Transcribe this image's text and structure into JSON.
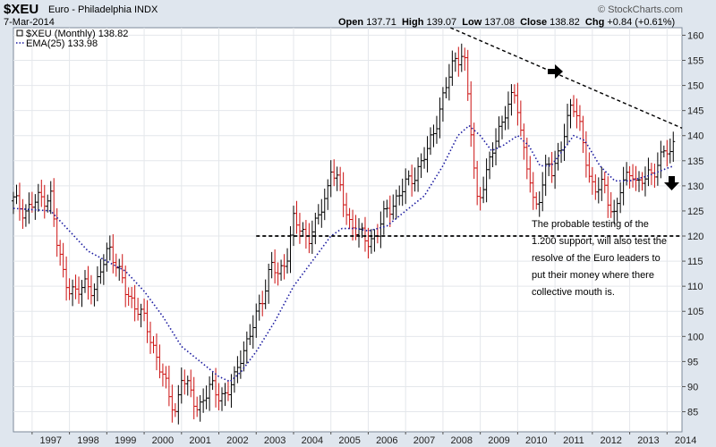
{
  "header": {
    "symbol": "$XEU",
    "description": "Euro - Philadelphia INDX",
    "date": "7-Mar-2014",
    "open_label": "Open",
    "open": "137.71",
    "high_label": "High",
    "high": "139.07",
    "low_label": "Low",
    "low": "137.08",
    "close_label": "Close",
    "close": "138.82",
    "chg_label": "Chg",
    "chg": "+0.84 (+0.61%)",
    "brand": "© StockCharts.com"
  },
  "annotation": "The probable testing of the 1.200 support, will also test the resolve of the Euro leaders to put their money where there collective mouth is.",
  "colors": {
    "up": "#000000",
    "down": "#cc1111",
    "ema": "#1a1aa0",
    "background": "#ffffff",
    "panel": "#dfe6ee"
  },
  "chart_data": {
    "type": "bar",
    "legend": [
      {
        "label": "$XEU (Monthly) 138.82",
        "style": "square"
      },
      {
        "label": "EMA(25) 133.98",
        "style": "dotted"
      }
    ],
    "legend_position": "top-left",
    "grid": true,
    "x_tick_labels": [
      "1997",
      "1998",
      "1999",
      "2000",
      "2001",
      "2002",
      "2003",
      "2004",
      "2005",
      "2006",
      "2007",
      "2008",
      "2009",
      "2010",
      "2011",
      "2012",
      "2013",
      "2014"
    ],
    "y_tick_labels": [
      "85",
      "90",
      "95",
      "100",
      "105",
      "110",
      "115",
      "120",
      "125",
      "130",
      "135",
      "140",
      "145",
      "150",
      "155",
      "160"
    ],
    "y_range": [
      81,
      161.5
    ],
    "x_range": [
      1996.5,
      2014.4
    ],
    "series": [
      {
        "name": "$XEU (Monthly)",
        "anchor_closes": [
          [
            1996.5,
            127.0
          ],
          [
            1996.8,
            125.0
          ],
          [
            1997.0,
            126.0
          ],
          [
            1997.2,
            127.5
          ],
          [
            1997.5,
            128.0
          ],
          [
            1997.65,
            119.0
          ],
          [
            1997.85,
            112.0
          ],
          [
            1998.0,
            110.0
          ],
          [
            1998.2,
            108.0
          ],
          [
            1998.45,
            111.0
          ],
          [
            1998.7,
            109.0
          ],
          [
            1998.85,
            113.0
          ],
          [
            1999.0,
            117.0
          ],
          [
            1999.1,
            118.0
          ],
          [
            1999.3,
            113.0
          ],
          [
            1999.5,
            109.0
          ],
          [
            1999.8,
            106.0
          ],
          [
            2000.0,
            103.0
          ],
          [
            2000.3,
            97.0
          ],
          [
            2000.5,
            92.0
          ],
          [
            2000.65,
            88.0
          ],
          [
            2000.8,
            86.0
          ],
          [
            2000.85,
            85.0
          ],
          [
            2001.0,
            92.0
          ],
          [
            2001.2,
            89.0
          ],
          [
            2001.45,
            86.0
          ],
          [
            2001.65,
            88.0
          ],
          [
            2001.8,
            90.0
          ],
          [
            2001.95,
            89.0
          ],
          [
            2002.2,
            88.0
          ],
          [
            2002.4,
            91.0
          ],
          [
            2002.6,
            97.0
          ],
          [
            2002.8,
            99.0
          ],
          [
            2003.0,
            104.0
          ],
          [
            2003.2,
            109.0
          ],
          [
            2003.4,
            114.0
          ],
          [
            2003.6,
            112.0
          ],
          [
            2003.85,
            117.0
          ],
          [
            2004.0,
            123.0
          ],
          [
            2004.2,
            121.0
          ],
          [
            2004.4,
            120.0
          ],
          [
            2004.6,
            122.0
          ],
          [
            2004.9,
            129.0
          ],
          [
            2005.0,
            134.0
          ],
          [
            2005.2,
            130.0
          ],
          [
            2005.5,
            123.0
          ],
          [
            2005.8,
            120.0
          ],
          [
            2005.95,
            119.0
          ],
          [
            2006.2,
            120.0
          ],
          [
            2006.5,
            125.0
          ],
          [
            2006.8,
            128.0
          ],
          [
            2007.0,
            130.0
          ],
          [
            2007.3,
            133.0
          ],
          [
            2007.6,
            137.0
          ],
          [
            2007.9,
            145.0
          ],
          [
            2008.1,
            150.0
          ],
          [
            2008.3,
            155.0
          ],
          [
            2008.55,
            157.0
          ],
          [
            2008.7,
            145.0
          ],
          [
            2008.9,
            127.0
          ],
          [
            2009.05,
            130.0
          ],
          [
            2009.2,
            133.0
          ],
          [
            2009.45,
            140.0
          ],
          [
            2009.65,
            145.0
          ],
          [
            2009.95,
            148.0
          ],
          [
            2010.1,
            140.0
          ],
          [
            2010.3,
            133.0
          ],
          [
            2010.45,
            124.0
          ],
          [
            2010.6,
            128.0
          ],
          [
            2010.8,
            136.0
          ],
          [
            2010.95,
            132.0
          ],
          [
            2011.15,
            137.0
          ],
          [
            2011.3,
            143.0
          ],
          [
            2011.45,
            147.0
          ],
          [
            2011.6,
            143.0
          ],
          [
            2011.8,
            137.0
          ],
          [
            2011.95,
            131.0
          ],
          [
            2012.1,
            129.0
          ],
          [
            2012.3,
            130.0
          ],
          [
            2012.45,
            127.0
          ],
          [
            2012.6,
            124.0
          ],
          [
            2012.75,
            129.0
          ],
          [
            2012.95,
            132.0
          ],
          [
            2013.05,
            134.0
          ],
          [
            2013.2,
            130.0
          ],
          [
            2013.4,
            131.0
          ],
          [
            2013.6,
            133.0
          ],
          [
            2013.8,
            135.0
          ],
          [
            2013.95,
            137.0
          ],
          [
            2014.1,
            136.0
          ],
          [
            2014.19,
            138.82
          ]
        ]
      },
      {
        "name": "EMA(25)",
        "points": [
          [
            1996.5,
            125.5
          ],
          [
            1997.5,
            125.0
          ],
          [
            1998.0,
            121.0
          ],
          [
            1998.5,
            117.0
          ],
          [
            1999.0,
            115.0
          ],
          [
            1999.5,
            113.0
          ],
          [
            2000.0,
            109.0
          ],
          [
            2000.5,
            104.0
          ],
          [
            2001.0,
            98.0
          ],
          [
            2001.5,
            95.0
          ],
          [
            2002.0,
            92.0
          ],
          [
            2002.3,
            91.0
          ],
          [
            2002.6,
            93.0
          ],
          [
            2003.0,
            97.0
          ],
          [
            2003.5,
            103.0
          ],
          [
            2004.0,
            110.0
          ],
          [
            2004.5,
            115.0
          ],
          [
            2005.0,
            120.0
          ],
          [
            2005.3,
            121.5
          ],
          [
            2005.7,
            121.5
          ],
          [
            2006.0,
            121.0
          ],
          [
            2006.5,
            122.0
          ],
          [
            2007.0,
            125.0
          ],
          [
            2007.5,
            128.0
          ],
          [
            2008.0,
            134.0
          ],
          [
            2008.4,
            140.0
          ],
          [
            2008.7,
            142.0
          ],
          [
            2009.0,
            140.0
          ],
          [
            2009.3,
            137.0
          ],
          [
            2009.6,
            138.0
          ],
          [
            2010.0,
            140.0
          ],
          [
            2010.3,
            138.0
          ],
          [
            2010.6,
            134.0
          ],
          [
            2010.9,
            134.0
          ],
          [
            2011.2,
            137.0
          ],
          [
            2011.5,
            140.0
          ],
          [
            2011.8,
            139.0
          ],
          [
            2012.2,
            134.0
          ],
          [
            2012.6,
            131.0
          ],
          [
            2013.0,
            131.0
          ],
          [
            2013.5,
            132.0
          ],
          [
            2014.0,
            133.5
          ],
          [
            2014.19,
            133.98
          ]
        ]
      }
    ],
    "overlays": {
      "resistance_trendline": {
        "from": [
          2008.2,
          161.5
        ],
        "to": [
          2014.4,
          141.5
        ]
      },
      "support_line": {
        "y": 120.0,
        "from_x": 2003.0,
        "to_x": 2014.4
      }
    }
  }
}
